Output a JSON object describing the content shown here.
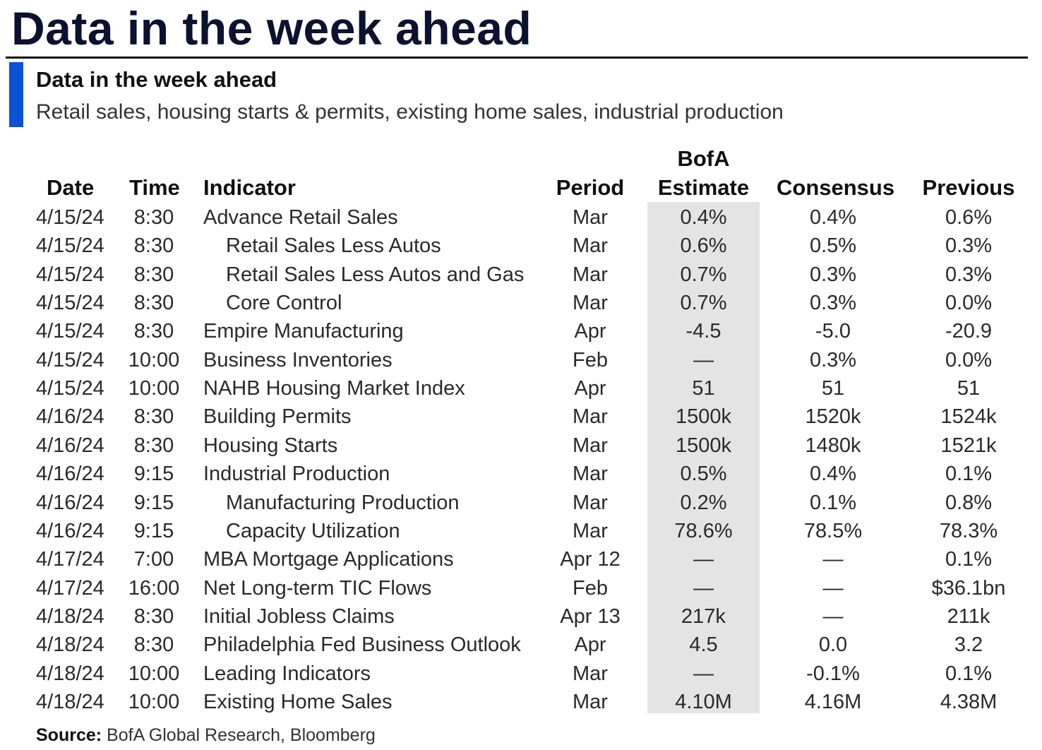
{
  "page": {
    "title": "Data in the week ahead"
  },
  "chart": {
    "title": "Data in the week ahead",
    "subtitle": "Retail sales, housing starts & permits, existing home sales, industrial production"
  },
  "headers": {
    "date": "Date",
    "time": "Time",
    "indicator": "Indicator",
    "period": "Period",
    "estimate_line1": "BofA",
    "estimate_line2": "Estimate",
    "consensus": "Consensus",
    "previous": "Previous"
  },
  "rows": [
    {
      "date": "4/15/24",
      "time": "8:30",
      "indicator": "Advance Retail Sales",
      "indent": false,
      "period": "Mar",
      "estimate": "0.4%",
      "consensus": "0.4%",
      "previous": "0.6%"
    },
    {
      "date": "4/15/24",
      "time": "8:30",
      "indicator": "Retail Sales Less Autos",
      "indent": true,
      "period": "Mar",
      "estimate": "0.6%",
      "consensus": "0.5%",
      "previous": "0.3%"
    },
    {
      "date": "4/15/24",
      "time": "8:30",
      "indicator": "Retail Sales Less Autos and Gas",
      "indent": true,
      "period": "Mar",
      "estimate": "0.7%",
      "consensus": "0.3%",
      "previous": "0.3%"
    },
    {
      "date": "4/15/24",
      "time": "8:30",
      "indicator": "Core Control",
      "indent": true,
      "period": "Mar",
      "estimate": "0.7%",
      "consensus": "0.3%",
      "previous": "0.0%"
    },
    {
      "date": "4/15/24",
      "time": "8:30",
      "indicator": "Empire Manufacturing",
      "indent": false,
      "period": "Apr",
      "estimate": "-4.5",
      "consensus": "-5.0",
      "previous": "-20.9"
    },
    {
      "date": "4/15/24",
      "time": "10:00",
      "indicator": "Business Inventories",
      "indent": false,
      "period": "Feb",
      "estimate": "—",
      "consensus": "0.3%",
      "previous": "0.0%"
    },
    {
      "date": "4/15/24",
      "time": "10:00",
      "indicator": "NAHB Housing Market Index",
      "indent": false,
      "period": "Apr",
      "estimate": "51",
      "consensus": "51",
      "previous": "51"
    },
    {
      "date": "4/16/24",
      "time": "8:30",
      "indicator": "Building Permits",
      "indent": false,
      "period": "Mar",
      "estimate": "1500k",
      "consensus": "1520k",
      "previous": "1524k"
    },
    {
      "date": "4/16/24",
      "time": "8:30",
      "indicator": "Housing Starts",
      "indent": false,
      "period": "Mar",
      "estimate": "1500k",
      "consensus": "1480k",
      "previous": "1521k"
    },
    {
      "date": "4/16/24",
      "time": "9:15",
      "indicator": "Industrial Production",
      "indent": false,
      "period": "Mar",
      "estimate": "0.5%",
      "consensus": "0.4%",
      "previous": "0.1%"
    },
    {
      "date": "4/16/24",
      "time": "9:15",
      "indicator": "Manufacturing Production",
      "indent": true,
      "period": "Mar",
      "estimate": "0.2%",
      "consensus": "0.1%",
      "previous": "0.8%"
    },
    {
      "date": "4/16/24",
      "time": "9:15",
      "indicator": "Capacity Utilization",
      "indent": true,
      "period": "Mar",
      "estimate": "78.6%",
      "consensus": "78.5%",
      "previous": "78.3%"
    },
    {
      "date": "4/17/24",
      "time": "7:00",
      "indicator": "MBA Mortgage Applications",
      "indent": false,
      "period": "Apr 12",
      "estimate": "—",
      "consensus": "—",
      "previous": "0.1%"
    },
    {
      "date": "4/17/24",
      "time": "16:00",
      "indicator": "Net Long-term TIC Flows",
      "indent": false,
      "period": "Feb",
      "estimate": "—",
      "consensus": "—",
      "previous": "$36.1bn"
    },
    {
      "date": "4/18/24",
      "time": "8:30",
      "indicator": "Initial Jobless Claims",
      "indent": false,
      "period": "Apr 13",
      "estimate": "217k",
      "consensus": "—",
      "previous": "211k"
    },
    {
      "date": "4/18/24",
      "time": "8:30",
      "indicator": "Philadelphia Fed Business Outlook",
      "indent": false,
      "period": "Apr",
      "estimate": "4.5",
      "consensus": "0.0",
      "previous": "3.2"
    },
    {
      "date": "4/18/24",
      "time": "10:00",
      "indicator": "Leading Indicators",
      "indent": false,
      "period": "Mar",
      "estimate": "—",
      "consensus": "-0.1%",
      "previous": "0.1%"
    },
    {
      "date": "4/18/24",
      "time": "10:00",
      "indicator": "Existing Home Sales",
      "indent": false,
      "period": "Mar",
      "estimate": "4.10M",
      "consensus": "4.16M",
      "previous": "4.38M"
    }
  ],
  "footer": {
    "source_label": "Source:",
    "source_text": " BofA Global Research, Bloomberg"
  },
  "colors": {
    "accent_bar": "#0a52d6",
    "estimate_column_bg": "#e4e4e4",
    "title": "#0b1230"
  }
}
